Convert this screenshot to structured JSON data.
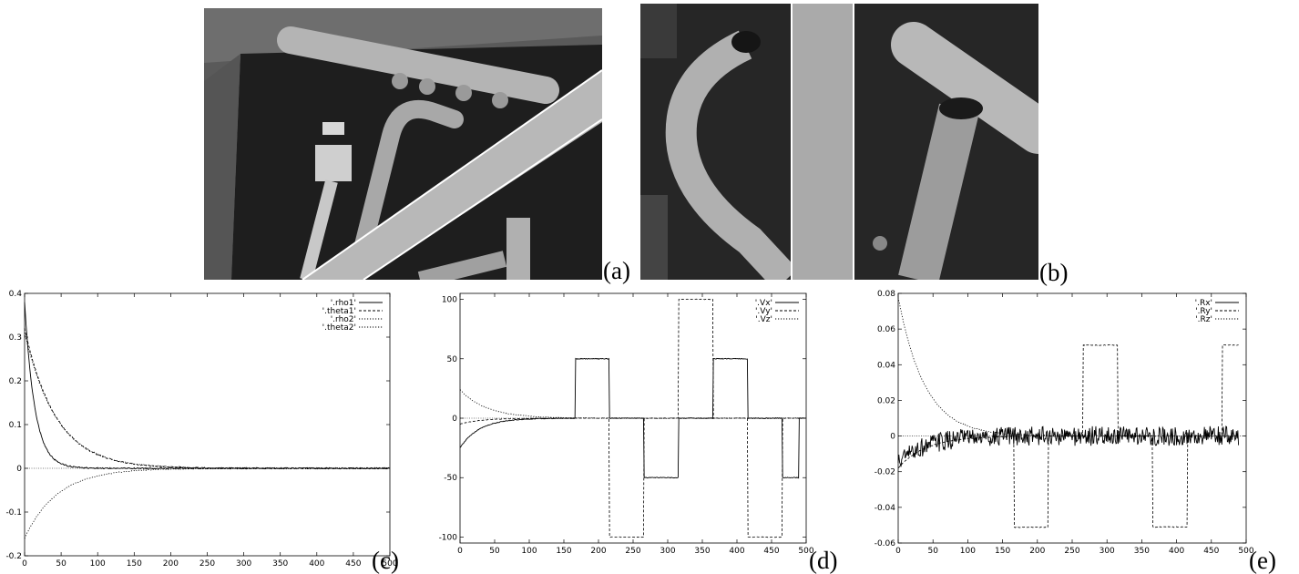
{
  "panels": {
    "a": "(a)",
    "b": "(b)",
    "c": "(c)",
    "d": "(d)",
    "e": "(e)"
  },
  "colors": {
    "photo_background": "#2a2a2a",
    "pipe": "#b4b4b4",
    "highlight_line": "#ffffff",
    "axis": "#000000"
  },
  "chart_data": [
    {
      "id": "c",
      "type": "line",
      "xlim": [
        0,
        500
      ],
      "ylim": [
        -0.2,
        0.4
      ],
      "xticks": [
        0,
        50,
        100,
        150,
        200,
        250,
        300,
        350,
        400,
        450,
        500
      ],
      "yticks": [
        -0.2,
        -0.1,
        0,
        0.1,
        0.2,
        0.3,
        0.4
      ],
      "ytick_labels": [
        "-0.2",
        "-0.1",
        "0",
        "0.1",
        "0.2",
        "0.3",
        "0.4"
      ],
      "zero_line": true,
      "legend_position": "top-right",
      "n_points": 500,
      "series": [
        {
          "name": "'.rho1'",
          "style": "solid",
          "kind": "exp",
          "start": 0.38,
          "tau": 14,
          "noise": 0.0015
        },
        {
          "name": "'.theta1'",
          "style": "dashed",
          "kind": "exp",
          "start": 0.32,
          "tau": 43,
          "noise": 0.0015
        },
        {
          "name": "'.rho2'",
          "style": "dotted",
          "kind": "exp",
          "start": -0.16,
          "tau": 45,
          "noise": 0.001
        },
        {
          "name": "'.theta2'",
          "style": "dotted",
          "kind": "exp",
          "start": 0.31,
          "tau": 44,
          "noise": 0.0015
        }
      ]
    },
    {
      "id": "d",
      "type": "line",
      "xlim": [
        0,
        500
      ],
      "ylim": [
        -105,
        105
      ],
      "xticks": [
        0,
        50,
        100,
        150,
        200,
        250,
        300,
        350,
        400,
        450,
        500
      ],
      "yticks": [
        -100,
        -50,
        0,
        50,
        100
      ],
      "ytick_labels": [
        "-100",
        "-50",
        "0",
        "50",
        "100"
      ],
      "zero_line": true,
      "legend_position": "top-right",
      "n_points": 500,
      "series": [
        {
          "name": "'.Vx'",
          "style": "solid",
          "kind": "exp_steps",
          "start": -25,
          "tau": 28,
          "noise": 0.3,
          "steps": [
            [
              167,
              216,
              50
            ],
            [
              266,
              316,
              -50
            ],
            [
              366,
              416,
              50
            ],
            [
              466,
              490,
              -50
            ]
          ]
        },
        {
          "name": "'.Vy'",
          "style": "dashed",
          "kind": "exp_steps",
          "start": -5,
          "tau": 30,
          "noise": 0.2,
          "steps": [
            [
              216,
              266,
              -100
            ],
            [
              316,
              366,
              100
            ],
            [
              416,
              466,
              -100
            ]
          ]
        },
        {
          "name": "'.Vz'",
          "style": "dotted",
          "kind": "exp",
          "start": 24,
          "tau": 38,
          "noise": 0.3
        }
      ]
    },
    {
      "id": "e",
      "type": "line",
      "xlim": [
        0,
        500
      ],
      "ylim": [
        -0.06,
        0.08
      ],
      "xticks": [
        0,
        50,
        100,
        150,
        200,
        250,
        300,
        350,
        400,
        450,
        500
      ],
      "yticks": [
        -0.06,
        -0.04,
        -0.02,
        0,
        0.02,
        0.04,
        0.06,
        0.08
      ],
      "ytick_labels": [
        "-0.06",
        "-0.04",
        "-0.02",
        "0",
        "0.02",
        "0.04",
        "0.06",
        "0.08"
      ],
      "zero_line": true,
      "legend_position": "top-right",
      "n_points": 490,
      "series": [
        {
          "name": "'.Rx'",
          "style": "solid",
          "kind": "exp",
          "start": -0.015,
          "tau": 40,
          "noise": 0.0055
        },
        {
          "name": "'.Ry'",
          "style": "dashed",
          "kind": "exp_steps",
          "start": -0.018,
          "tau": 40,
          "noise": 0.0002,
          "steps": [
            [
              167,
              216,
              -0.051
            ],
            [
              266,
              316,
              0.051
            ],
            [
              366,
              416,
              -0.051
            ],
            [
              466,
              490,
              0.051
            ]
          ]
        },
        {
          "name": "'.Rz'",
          "style": "dotted",
          "kind": "exp",
          "start": 0.078,
          "tau": 38,
          "noise": 0.0003
        }
      ]
    }
  ]
}
